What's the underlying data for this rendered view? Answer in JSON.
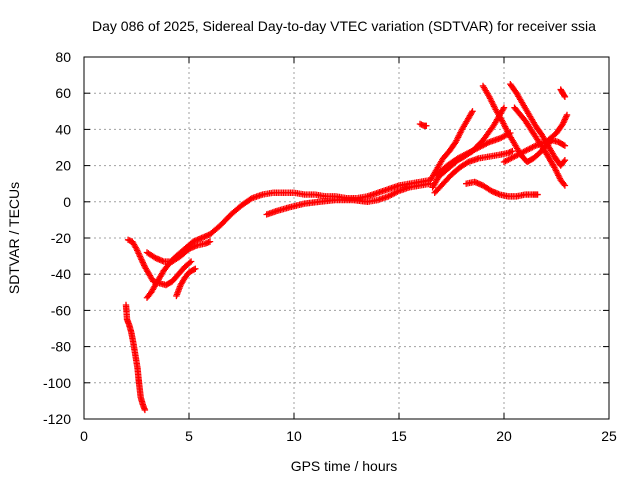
{
  "chart_data": {
    "type": "scatter",
    "title": "Day 086 of 2025, Sidereal Day-to-day VTEC variation (SDTVAR) for receiver ssia",
    "xlabel": "GPS time / hours",
    "ylabel": "SDTVAR / TECUs",
    "xlim": [
      0,
      25
    ],
    "ylim": [
      -120,
      80
    ],
    "xticks": [
      0,
      5,
      10,
      15,
      20,
      25
    ],
    "yticks": [
      -120,
      -100,
      -80,
      -60,
      -40,
      -20,
      0,
      20,
      40,
      60,
      80
    ],
    "grid": true,
    "marker": "+",
    "color": "#ff0000",
    "series": [
      {
        "points": [
          [
            2.0,
            -57
          ],
          [
            2.05,
            -65
          ],
          [
            2.15,
            -68
          ],
          [
            2.25,
            -72
          ],
          [
            2.35,
            -78
          ],
          [
            2.45,
            -85
          ],
          [
            2.55,
            -92
          ],
          [
            2.6,
            -98
          ],
          [
            2.65,
            -103
          ],
          [
            2.7,
            -108
          ],
          [
            2.8,
            -112
          ],
          [
            2.9,
            -115
          ]
        ]
      },
      {
        "points": [
          [
            2.1,
            -21
          ],
          [
            2.3,
            -22
          ],
          [
            2.5,
            -26
          ],
          [
            2.7,
            -31
          ],
          [
            2.9,
            -36
          ],
          [
            3.1,
            -40
          ],
          [
            3.3,
            -44
          ],
          [
            3.6,
            -45
          ],
          [
            3.9,
            -46
          ],
          [
            4.2,
            -44
          ],
          [
            4.5,
            -40
          ],
          [
            4.8,
            -36
          ],
          [
            5.1,
            -33
          ]
        ]
      },
      {
        "points": [
          [
            3.0,
            -53
          ],
          [
            3.2,
            -50
          ],
          [
            3.4,
            -46
          ],
          [
            3.6,
            -42
          ],
          [
            3.8,
            -38
          ],
          [
            4.0,
            -35
          ],
          [
            4.3,
            -31
          ],
          [
            4.6,
            -28
          ],
          [
            4.9,
            -25
          ],
          [
            5.2,
            -22
          ],
          [
            5.6,
            -20
          ],
          [
            6.0,
            -18
          ],
          [
            6.5,
            -13
          ],
          [
            7.0,
            -7
          ],
          [
            7.5,
            -2
          ],
          [
            8.0,
            2
          ],
          [
            8.5,
            4
          ],
          [
            9.0,
            5
          ],
          [
            9.5,
            5
          ],
          [
            10.0,
            5
          ],
          [
            10.5,
            4
          ],
          [
            11.0,
            4
          ],
          [
            11.5,
            3
          ],
          [
            12.0,
            3
          ],
          [
            12.5,
            2
          ],
          [
            13.0,
            2
          ],
          [
            13.5,
            3
          ],
          [
            14.0,
            5
          ],
          [
            14.5,
            7
          ],
          [
            15.0,
            9
          ],
          [
            15.5,
            10
          ],
          [
            16.0,
            11
          ],
          [
            16.5,
            12
          ]
        ]
      },
      {
        "points": [
          [
            3.0,
            -28
          ],
          [
            3.4,
            -31
          ],
          [
            3.8,
            -33
          ],
          [
            4.2,
            -33
          ],
          [
            4.6,
            -30
          ],
          [
            5.0,
            -26
          ],
          [
            5.4,
            -24
          ],
          [
            5.8,
            -23
          ],
          [
            6.0,
            -22
          ]
        ]
      },
      {
        "points": [
          [
            4.4,
            -52
          ],
          [
            4.6,
            -46
          ],
          [
            4.8,
            -42
          ],
          [
            5.0,
            -39
          ],
          [
            5.3,
            -37
          ]
        ]
      },
      {
        "points": [
          [
            8.7,
            -7
          ],
          [
            9.2,
            -5
          ],
          [
            9.8,
            -3
          ],
          [
            10.5,
            -1
          ],
          [
            11.2,
            0
          ],
          [
            12.0,
            1
          ],
          [
            12.8,
            1
          ],
          [
            13.5,
            0
          ],
          [
            14.0,
            1
          ],
          [
            14.5,
            3
          ],
          [
            15.0,
            6
          ],
          [
            15.5,
            8
          ],
          [
            16.0,
            9
          ],
          [
            16.5,
            10
          ]
        ]
      },
      {
        "points": [
          [
            16.0,
            43
          ],
          [
            16.2,
            42
          ],
          [
            16.3,
            42
          ]
        ]
      },
      {
        "points": [
          [
            16.5,
            12
          ],
          [
            16.8,
            18
          ],
          [
            17.1,
            24
          ],
          [
            17.4,
            28
          ],
          [
            17.7,
            33
          ],
          [
            18.0,
            40
          ],
          [
            18.3,
            46
          ],
          [
            18.5,
            50
          ]
        ]
      },
      {
        "points": [
          [
            16.6,
            8
          ],
          [
            16.9,
            14
          ],
          [
            17.2,
            17
          ],
          [
            17.5,
            20
          ],
          [
            17.8,
            23
          ],
          [
            18.1,
            25
          ],
          [
            18.5,
            28
          ],
          [
            19.0,
            34
          ],
          [
            19.5,
            42
          ],
          [
            19.8,
            48
          ],
          [
            20.0,
            52
          ]
        ]
      },
      {
        "points": [
          [
            16.7,
            5
          ],
          [
            17.1,
            10
          ],
          [
            17.5,
            15
          ],
          [
            17.9,
            19
          ],
          [
            18.3,
            22
          ],
          [
            18.8,
            24
          ],
          [
            19.3,
            25
          ],
          [
            19.8,
            26
          ],
          [
            20.2,
            27
          ],
          [
            20.4,
            28
          ]
        ]
      },
      {
        "points": [
          [
            16.8,
            15
          ],
          [
            17.3,
            20
          ],
          [
            17.8,
            24
          ],
          [
            18.3,
            27
          ],
          [
            18.8,
            30
          ],
          [
            19.3,
            33
          ],
          [
            19.8,
            35
          ],
          [
            20.3,
            38
          ]
        ]
      },
      {
        "points": [
          [
            19.0,
            64
          ],
          [
            19.3,
            58
          ],
          [
            19.6,
            51
          ],
          [
            19.9,
            45
          ],
          [
            20.2,
            38
          ],
          [
            20.5,
            32
          ],
          [
            20.8,
            26
          ],
          [
            21.1,
            22
          ],
          [
            21.4,
            24
          ],
          [
            21.7,
            27
          ],
          [
            22.0,
            31
          ],
          [
            22.3,
            34
          ],
          [
            22.6,
            33
          ],
          [
            22.9,
            31
          ]
        ]
      },
      {
        "points": [
          [
            20.3,
            65
          ],
          [
            20.6,
            60
          ],
          [
            20.9,
            54
          ],
          [
            21.2,
            48
          ],
          [
            21.5,
            42
          ],
          [
            21.8,
            37
          ],
          [
            22.1,
            31
          ],
          [
            22.4,
            25
          ],
          [
            22.7,
            20
          ],
          [
            22.9,
            23
          ]
        ]
      },
      {
        "points": [
          [
            18.2,
            10
          ],
          [
            18.6,
            11
          ],
          [
            19.0,
            9
          ],
          [
            19.4,
            6
          ],
          [
            19.8,
            4
          ],
          [
            20.2,
            3
          ],
          [
            20.6,
            3
          ],
          [
            21.0,
            4
          ],
          [
            21.4,
            4
          ],
          [
            21.6,
            4
          ]
        ]
      },
      {
        "points": [
          [
            20.0,
            22
          ],
          [
            20.5,
            25
          ],
          [
            21.0,
            28
          ],
          [
            21.5,
            31
          ],
          [
            22.0,
            33
          ],
          [
            22.5,
            38
          ],
          [
            22.8,
            43
          ],
          [
            23.0,
            48
          ]
        ]
      },
      {
        "points": [
          [
            20.5,
            52
          ],
          [
            21.0,
            45
          ],
          [
            21.5,
            36
          ],
          [
            22.0,
            27
          ],
          [
            22.4,
            19
          ],
          [
            22.7,
            12
          ],
          [
            22.9,
            9
          ]
        ]
      },
      {
        "points": [
          [
            22.7,
            62
          ],
          [
            22.8,
            60
          ],
          [
            22.9,
            58
          ]
        ]
      }
    ]
  }
}
